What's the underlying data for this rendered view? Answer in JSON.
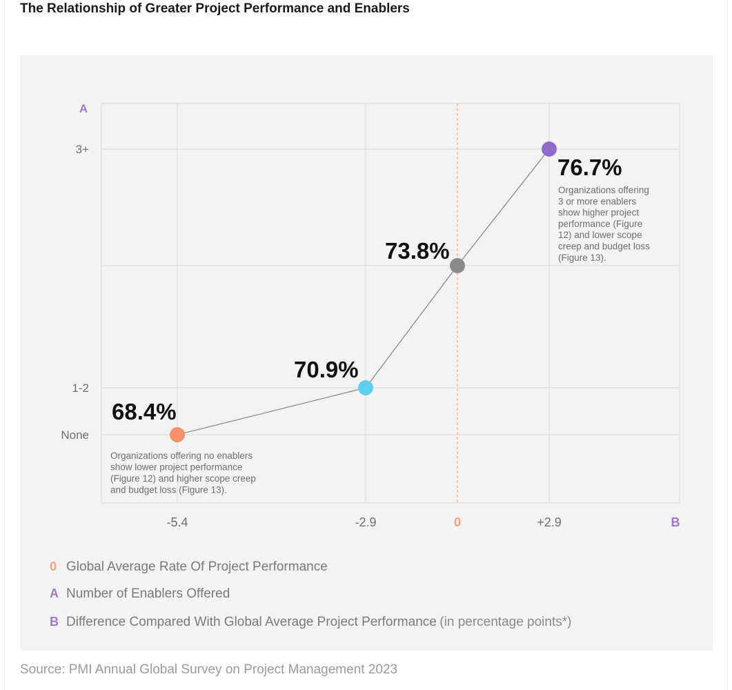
{
  "title": "The Relationship of Greater Project Performance and Enablers",
  "source": "Source: PMI Annual Global Survey on Project Management 2023",
  "axis_markers": {
    "a": "A",
    "b": "B"
  },
  "legend": [
    {
      "key": "0",
      "label": "Global Average Rate Of Project Performance",
      "note": "",
      "color": "#f6a07e"
    },
    {
      "key": "A",
      "label": "Number of Enablers Offered",
      "note": "",
      "color": "#9b79cf"
    },
    {
      "key": "B",
      "label": "Difference Compared With Global Average Project Performance",
      "note": "(in percentage points*)",
      "color": "#9b79cf"
    }
  ],
  "annotations": {
    "none": [
      "Organizations offering no enablers",
      "show lower project performance",
      "(Figure 12) and higher scope creep",
      "and budget loss (Figure 13)."
    ],
    "three_plus": [
      "Organizations offering",
      "3 or more enablers",
      "show higher project",
      "performance (Figure",
      "12) and lower scope",
      "creep and budget loss",
      "(Figure 13)."
    ]
  },
  "chart_data": {
    "type": "line",
    "title": "The Relationship of Greater Project Performance and Enablers",
    "xlabel": "Difference Compared With Global Average Project Performance (in percentage points*)",
    "ylabel": "Number of Enablers Offered",
    "x_ticks": [
      {
        "value": -5.4,
        "label": "-5.4"
      },
      {
        "value": -2.9,
        "label": "-2.9"
      },
      {
        "value": 0,
        "label": "0"
      },
      {
        "value": 2.9,
        "label": "+2.9"
      }
    ],
    "y_ticks": [
      {
        "level": 0,
        "label": "None"
      },
      {
        "level": 1,
        "label": "1-2"
      },
      {
        "level": 3,
        "label": "3+"
      }
    ],
    "points": [
      {
        "x": -5.4,
        "level": 0,
        "value_label": "68.4%",
        "color": "#f6906b"
      },
      {
        "x": -2.9,
        "level": 1,
        "value_label": "70.9%",
        "color": "#5fd0ec"
      },
      {
        "x": 0,
        "level": 2,
        "value_label": "73.8%",
        "color": "#8a8a8a"
      },
      {
        "x": 2.9,
        "level": 3,
        "value_label": "76.7%",
        "color": "#8e6ac9"
      }
    ],
    "reference_line": {
      "x": 0,
      "label": "Global Average Rate Of Project Performance"
    },
    "grid": true
  }
}
